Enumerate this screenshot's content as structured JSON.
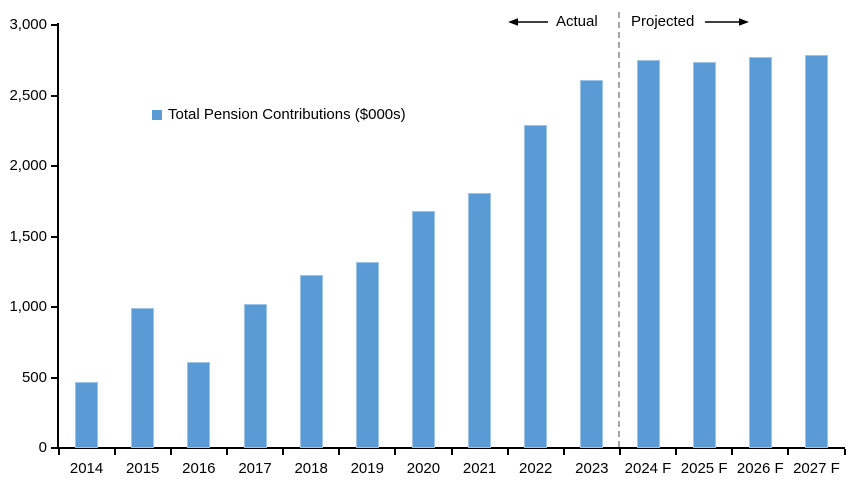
{
  "chart_data": {
    "type": "bar",
    "title": "",
    "series_name": "Total Pension Contributions ($000s)",
    "categories": [
      "2014",
      "2015",
      "2016",
      "2017",
      "2018",
      "2019",
      "2020",
      "2021",
      "2022",
      "2023",
      "2024 F",
      "2025 F",
      "2026 F",
      "2027 F"
    ],
    "values": [
      470,
      990,
      610,
      1020,
      1230,
      1320,
      1680,
      1810,
      2290,
      2610,
      2750,
      2740,
      2770,
      2790
    ],
    "xlabel": "",
    "ylabel": "",
    "ylim": [
      0,
      3000
    ],
    "ytick_step": 500,
    "yticks": [
      {
        "value": 0,
        "label": "0"
      },
      {
        "value": 500,
        "label": "500"
      },
      {
        "value": 1000,
        "label": "1,000"
      },
      {
        "value": 1500,
        "label": "1,500"
      },
      {
        "value": 2000,
        "label": "2,000"
      },
      {
        "value": 2500,
        "label": "2,500"
      },
      {
        "value": 3000,
        "label": "3,000"
      }
    ],
    "grid": false,
    "legend_position": "inside-upper-left",
    "bar_color": "#5B9BD5",
    "bar_edge_color": "#9DC3E6",
    "axis_color": "#000000",
    "divider": {
      "after_category": "2023",
      "style": "dashed",
      "color": "#A6A6A6"
    },
    "annotations": {
      "left": "Actual",
      "right": "Projected"
    }
  }
}
